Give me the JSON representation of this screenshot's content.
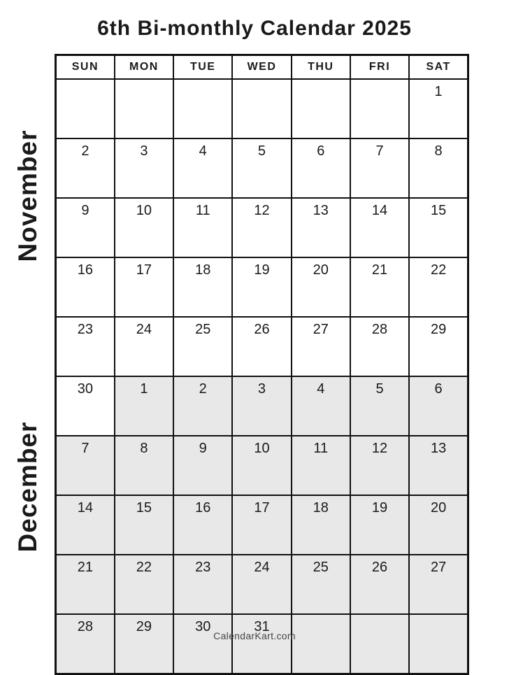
{
  "title": "6th Bi-monthly Calendar 2025",
  "weekdays": [
    "SUN",
    "MON",
    "TUE",
    "WED",
    "THU",
    "FRI",
    "SAT"
  ],
  "months": {
    "november": "November",
    "december": "December"
  },
  "rows": [
    {
      "cells": [
        {
          "text": "",
          "month": "november"
        },
        {
          "text": "",
          "month": "november"
        },
        {
          "text": "",
          "month": "november"
        },
        {
          "text": "",
          "month": "november"
        },
        {
          "text": "",
          "month": "november"
        },
        {
          "text": "",
          "month": "november"
        },
        {
          "text": "1",
          "month": "november"
        }
      ]
    },
    {
      "cells": [
        {
          "text": "2",
          "month": "november"
        },
        {
          "text": "3",
          "month": "november"
        },
        {
          "text": "4",
          "month": "november"
        },
        {
          "text": "5",
          "month": "november"
        },
        {
          "text": "6",
          "month": "november"
        },
        {
          "text": "7",
          "month": "november"
        },
        {
          "text": "8",
          "month": "november"
        }
      ]
    },
    {
      "cells": [
        {
          "text": "9",
          "month": "november"
        },
        {
          "text": "10",
          "month": "november"
        },
        {
          "text": "11",
          "month": "november"
        },
        {
          "text": "12",
          "month": "november"
        },
        {
          "text": "13",
          "month": "november"
        },
        {
          "text": "14",
          "month": "november"
        },
        {
          "text": "15",
          "month": "november"
        }
      ]
    },
    {
      "cells": [
        {
          "text": "16",
          "month": "november"
        },
        {
          "text": "17",
          "month": "november"
        },
        {
          "text": "18",
          "month": "november"
        },
        {
          "text": "19",
          "month": "november"
        },
        {
          "text": "20",
          "month": "november"
        },
        {
          "text": "21",
          "month": "november"
        },
        {
          "text": "22",
          "month": "november"
        }
      ]
    },
    {
      "cells": [
        {
          "text": "23",
          "month": "november"
        },
        {
          "text": "24",
          "month": "november"
        },
        {
          "text": "25",
          "month": "november"
        },
        {
          "text": "26",
          "month": "november"
        },
        {
          "text": "27",
          "month": "november"
        },
        {
          "text": "28",
          "month": "november"
        },
        {
          "text": "29",
          "month": "november"
        }
      ]
    },
    {
      "cells": [
        {
          "text": "30",
          "month": "november"
        },
        {
          "text": "1",
          "month": "december"
        },
        {
          "text": "2",
          "month": "december"
        },
        {
          "text": "3",
          "month": "december"
        },
        {
          "text": "4",
          "month": "december"
        },
        {
          "text": "5",
          "month": "december"
        },
        {
          "text": "6",
          "month": "december"
        }
      ]
    },
    {
      "cells": [
        {
          "text": "7",
          "month": "december"
        },
        {
          "text": "8",
          "month": "december"
        },
        {
          "text": "9",
          "month": "december"
        },
        {
          "text": "10",
          "month": "december"
        },
        {
          "text": "11",
          "month": "december"
        },
        {
          "text": "12",
          "month": "december"
        },
        {
          "text": "13",
          "month": "december"
        }
      ]
    },
    {
      "cells": [
        {
          "text": "14",
          "month": "december"
        },
        {
          "text": "15",
          "month": "december"
        },
        {
          "text": "16",
          "month": "december"
        },
        {
          "text": "17",
          "month": "december"
        },
        {
          "text": "18",
          "month": "december"
        },
        {
          "text": "19",
          "month": "december"
        },
        {
          "text": "20",
          "month": "december"
        }
      ]
    },
    {
      "cells": [
        {
          "text": "21",
          "month": "december"
        },
        {
          "text": "22",
          "month": "december"
        },
        {
          "text": "23",
          "month": "december"
        },
        {
          "text": "24",
          "month": "december"
        },
        {
          "text": "25",
          "month": "december"
        },
        {
          "text": "26",
          "month": "december"
        },
        {
          "text": "27",
          "month": "december"
        }
      ]
    },
    {
      "cells": [
        {
          "text": "28",
          "month": "december"
        },
        {
          "text": "29",
          "month": "december"
        },
        {
          "text": "30",
          "month": "december"
        },
        {
          "text": "31",
          "month": "december"
        },
        {
          "text": "",
          "month": "december"
        },
        {
          "text": "",
          "month": "december"
        },
        {
          "text": "",
          "month": "december"
        }
      ]
    }
  ],
  "footer": "CalendarKart.com",
  "colors": {
    "december_cell_bg": "#e8e8e8",
    "grid_border": "#111111",
    "text": "#1a1a1a",
    "footer_text": "#454545"
  }
}
